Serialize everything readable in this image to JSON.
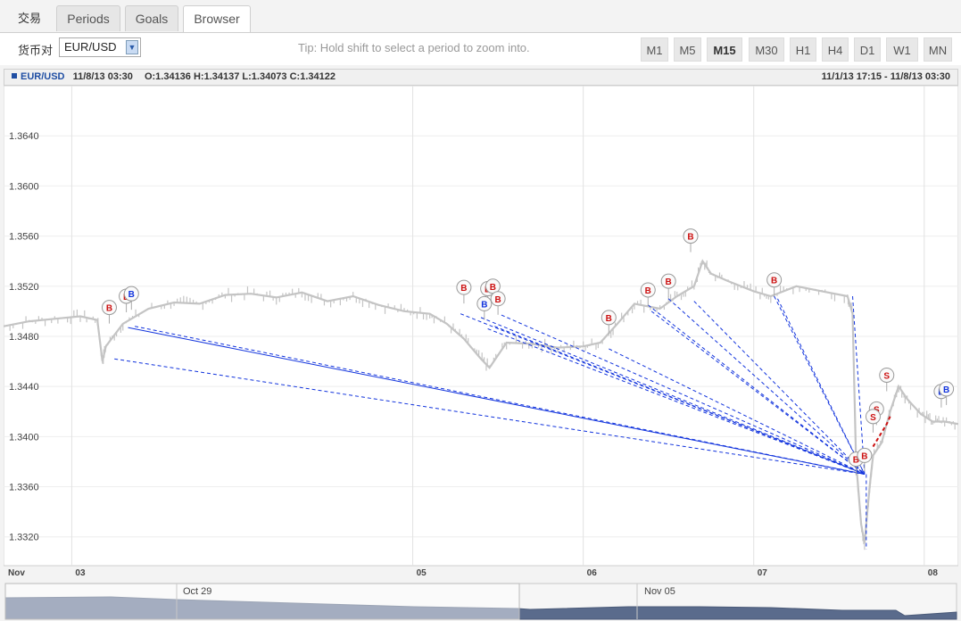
{
  "tabs": {
    "trade": "交易",
    "periods": "Periods",
    "goals": "Goals",
    "browser": "Browser"
  },
  "toolbar": {
    "pair_label": "货币对",
    "pair_value": "EUR/USD",
    "tip": "Tip: Hold shift to select a period to zoom into.",
    "timeframes": [
      "M1",
      "M5",
      "M15",
      "M30",
      "H1",
      "H4",
      "D1",
      "W1",
      "MN"
    ],
    "active_timeframe": "M15"
  },
  "infobar": {
    "symbol": "EUR/USD",
    "datetime": "11/8/13 03:30",
    "ohlc": "O:1.34136 H:1.34137 L:1.34073 C:1.34122",
    "range": "11/1/13 17:15 - 11/8/13 03:30"
  },
  "navigator": {
    "labels": [
      "Oct 29",
      "Nov 05"
    ]
  },
  "colors": {
    "buy": "#cc1111",
    "sell": "#cc1111",
    "trade_line": "#1133dd",
    "price": "#c4c4c4"
  },
  "chart_data": {
    "type": "line",
    "title": "",
    "xlabel": "",
    "ylabel": "",
    "x_tick_labels": [
      "Nov",
      "03",
      "05",
      "06",
      "07",
      "08"
    ],
    "y_ticks": [
      1.332,
      1.336,
      1.34,
      1.344,
      1.348,
      1.352,
      1.356,
      1.36,
      1.364
    ],
    "y_tick_labels": [
      "1.3320",
      "1.3360",
      "1.3400",
      "1.3440",
      "1.3480",
      "1.3520",
      "1.3560",
      "1.3600",
      "1.3640"
    ],
    "ylim": [
      1.3297,
      1.368
    ],
    "x_days_range": [
      2.6,
      8.2
    ],
    "grid": true,
    "series": [
      {
        "values": [
          [
            2.6,
            1.3488
          ],
          [
            2.75,
            1.3492
          ],
          [
            2.9,
            1.3494
          ],
          [
            3.05,
            1.3496
          ],
          [
            3.15,
            1.3493
          ],
          [
            3.18,
            1.346
          ],
          [
            3.2,
            1.3472
          ],
          [
            3.3,
            1.349
          ],
          [
            3.45,
            1.3502
          ],
          [
            3.6,
            1.3507
          ],
          [
            3.75,
            1.3506
          ],
          [
            3.9,
            1.3513
          ],
          [
            4.05,
            1.3514
          ],
          [
            4.2,
            1.3511
          ],
          [
            4.35,
            1.3515
          ],
          [
            4.5,
            1.3508
          ],
          [
            4.65,
            1.3512
          ],
          [
            4.8,
            1.3505
          ],
          [
            4.95,
            1.35
          ],
          [
            5.1,
            1.3498
          ],
          [
            5.2,
            1.349
          ],
          [
            5.3,
            1.3478
          ],
          [
            5.4,
            1.3462
          ],
          [
            5.45,
            1.3455
          ],
          [
            5.55,
            1.3475
          ],
          [
            5.7,
            1.3474
          ],
          [
            5.85,
            1.3471
          ],
          [
            6.0,
            1.3472
          ],
          [
            6.1,
            1.3475
          ],
          [
            6.2,
            1.349
          ],
          [
            6.3,
            1.3506
          ],
          [
            6.45,
            1.3502
          ],
          [
            6.55,
            1.3512
          ],
          [
            6.65,
            1.352
          ],
          [
            6.7,
            1.354
          ],
          [
            6.75,
            1.353
          ],
          [
            6.85,
            1.3524
          ],
          [
            7.0,
            1.3516
          ],
          [
            7.1,
            1.3512
          ],
          [
            7.25,
            1.352
          ],
          [
            7.4,
            1.3516
          ],
          [
            7.55,
            1.3512
          ],
          [
            7.58,
            1.3498
          ],
          [
            7.6,
            1.338
          ],
          [
            7.63,
            1.333
          ],
          [
            7.65,
            1.3315
          ],
          [
            7.68,
            1.336
          ],
          [
            7.7,
            1.3385
          ],
          [
            7.75,
            1.3395
          ],
          [
            7.8,
            1.342
          ],
          [
            7.85,
            1.344
          ],
          [
            7.9,
            1.343
          ],
          [
            7.98,
            1.3418
          ],
          [
            8.05,
            1.3412
          ],
          [
            8.12,
            1.3412
          ],
          [
            8.2,
            1.341
          ]
        ]
      }
    ]
  },
  "markers": [
    {
      "label": "B",
      "kind": "buy",
      "x": 3.22,
      "y": 1.3503
    },
    {
      "label": "B",
      "kind": "buy",
      "x": 3.32,
      "y": 1.3512
    },
    {
      "label": "B",
      "kind": "sell-blue",
      "x": 3.35,
      "y": 1.3514
    },
    {
      "label": "B",
      "kind": "buy",
      "x": 5.3,
      "y": 1.3519
    },
    {
      "label": "B",
      "kind": "buy",
      "x": 5.44,
      "y": 1.3518
    },
    {
      "label": "B",
      "kind": "buy",
      "x": 5.47,
      "y": 1.352
    },
    {
      "label": "B",
      "kind": "sell-blue",
      "x": 5.42,
      "y": 1.3506
    },
    {
      "label": "B",
      "kind": "buy",
      "x": 5.5,
      "y": 1.351
    },
    {
      "label": "B",
      "kind": "buy",
      "x": 6.15,
      "y": 1.3495
    },
    {
      "label": "B",
      "kind": "buy",
      "x": 6.38,
      "y": 1.3517
    },
    {
      "label": "B",
      "kind": "buy",
      "x": 6.5,
      "y": 1.3524
    },
    {
      "label": "B",
      "kind": "buy",
      "x": 6.63,
      "y": 1.356
    },
    {
      "label": "B",
      "kind": "buy",
      "x": 7.12,
      "y": 1.3525
    },
    {
      "label": "B",
      "kind": "buy",
      "x": 7.6,
      "y": 1.3382
    },
    {
      "label": "B",
      "kind": "buy",
      "x": 7.65,
      "y": 1.3385
    },
    {
      "label": "S",
      "kind": "sell",
      "x": 7.72,
      "y": 1.3422
    },
    {
      "label": "S",
      "kind": "sell",
      "x": 7.78,
      "y": 1.3449
    },
    {
      "label": "S",
      "kind": "sell",
      "x": 7.7,
      "y": 1.3416
    },
    {
      "label": "B",
      "kind": "sell-blue",
      "x": 8.1,
      "y": 1.3436
    },
    {
      "label": "B",
      "kind": "sell-blue",
      "x": 8.13,
      "y": 1.3438
    }
  ]
}
